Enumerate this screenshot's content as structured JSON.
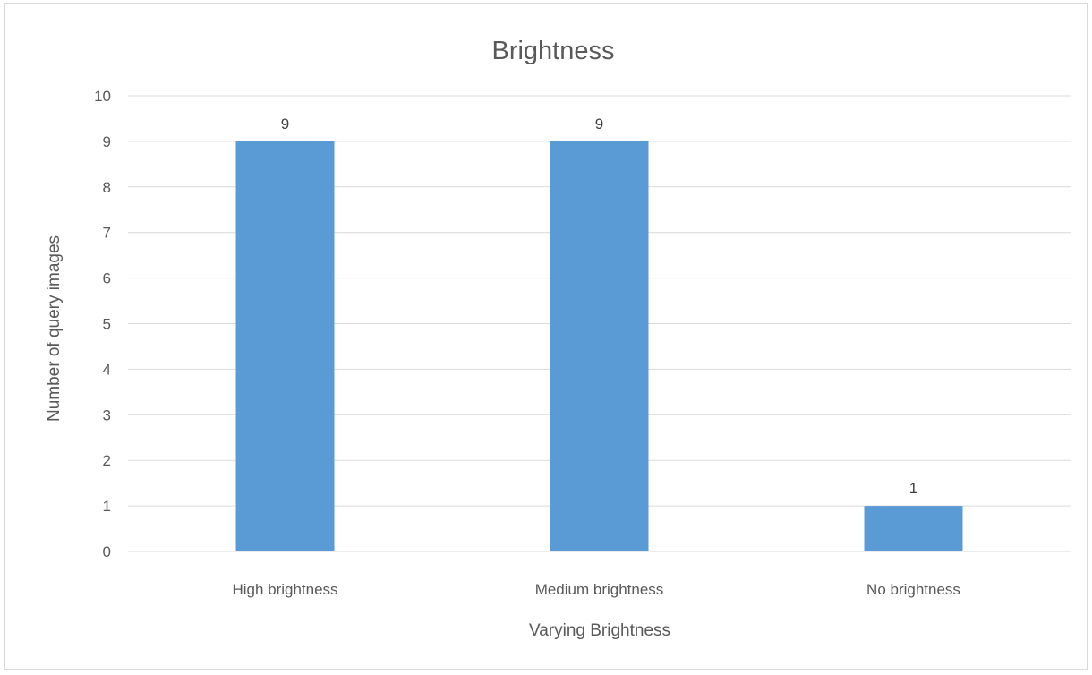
{
  "chart_data": {
    "type": "bar",
    "title": "Brightness",
    "xlabel": "Varying Brightness",
    "ylabel": "Number of query images",
    "categories": [
      "High brightness",
      "Medium brightness",
      "No brightness"
    ],
    "values": [
      9,
      9,
      1
    ],
    "data_labels": [
      "9",
      "9",
      "1"
    ],
    "ylim": [
      0,
      10
    ],
    "y_ticks": [
      0,
      1,
      2,
      3,
      4,
      5,
      6,
      7,
      8,
      9,
      10
    ],
    "y_tick_labels": [
      "0",
      "1",
      "2",
      "3",
      "4",
      "5",
      "6",
      "7",
      "8",
      "9",
      "10"
    ],
    "grid": true,
    "legend": "none",
    "colors": {
      "bar": "#5b9bd5",
      "grid": "#d9d9d9",
      "text": "#595959",
      "border": "#d9d9d9"
    }
  }
}
